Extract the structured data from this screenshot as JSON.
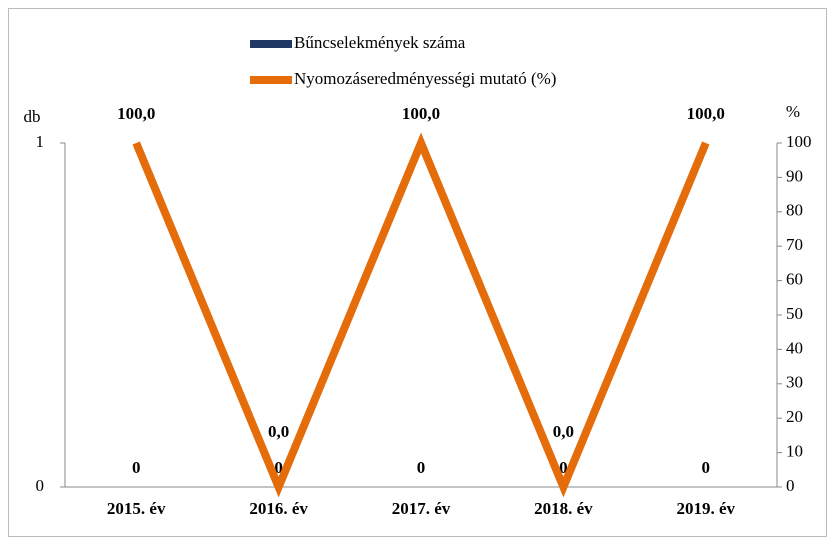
{
  "chart_data": {
    "type": "bar",
    "categories": [
      "2015. év",
      "2016. év",
      "2017. év",
      "2018. év",
      "2019. év"
    ],
    "ylabel": "db",
    "y2label": "%",
    "ylim": [
      0,
      1
    ],
    "yticks": [
      0,
      1
    ],
    "y2lim": [
      0,
      100
    ],
    "y2ticks": [
      0,
      10,
      20,
      30,
      40,
      50,
      60,
      70,
      80,
      90,
      100
    ],
    "legend": "top",
    "series": [
      {
        "name": "Bűncselekmények száma",
        "type": "bar",
        "color": "#1f3864",
        "values": [
          0,
          0,
          0,
          0,
          0
        ]
      },
      {
        "name": "Nyomozáseredményességi mutató (%)",
        "type": "line",
        "axis": "y2",
        "color": "#e46c0a",
        "values": [
          100,
          0,
          100,
          0,
          100
        ],
        "value_labels": [
          "100,0",
          "0,0",
          "100,0",
          "0,0",
          "100,0"
        ]
      }
    ]
  }
}
